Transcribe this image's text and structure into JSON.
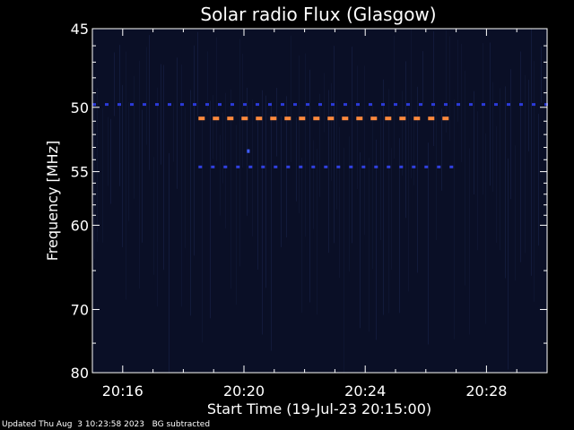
{
  "chart_data": {
    "type": "heatmap",
    "title": "Solar radio Flux (Glasgow)",
    "xlabel": "Start Time (19-Jul-23 20:15:00)",
    "ylabel": "Frequency [MHz]",
    "x_ticks": [
      "20:16",
      "20:20",
      "20:24",
      "20:28"
    ],
    "x_tick_minutes": [
      16,
      20,
      24,
      28
    ],
    "xlim_minutes": [
      15,
      30
    ],
    "y_ticks": [
      45,
      50,
      55,
      60,
      70,
      80
    ],
    "ylim_mhz": [
      45,
      80
    ],
    "y_scale": "reciprocal",
    "background_color": "#0a0f26",
    "features": [
      {
        "name": "interference-50mhz",
        "freq_mhz": 49.8,
        "start_min": 15.0,
        "end_min": 30.0,
        "color": "#2b3ad8"
      },
      {
        "name": "strong-emission-51mhz",
        "freq_mhz": 50.8,
        "start_min": 18.5,
        "end_min": 26.8,
        "color": "#ff8a3d"
      },
      {
        "name": "emission-54.5mhz",
        "freq_mhz": 54.6,
        "start_min": 18.5,
        "end_min": 26.8,
        "color": "#3040e0"
      },
      {
        "name": "spot-53mhz",
        "freq_mhz": 53.3,
        "start_min": 20.1,
        "end_min": 20.2,
        "color": "#3f5cff"
      }
    ]
  },
  "footer": {
    "updated": "Updated Thu Aug  3 10:23:58 2023",
    "note": "BG subtracted"
  }
}
